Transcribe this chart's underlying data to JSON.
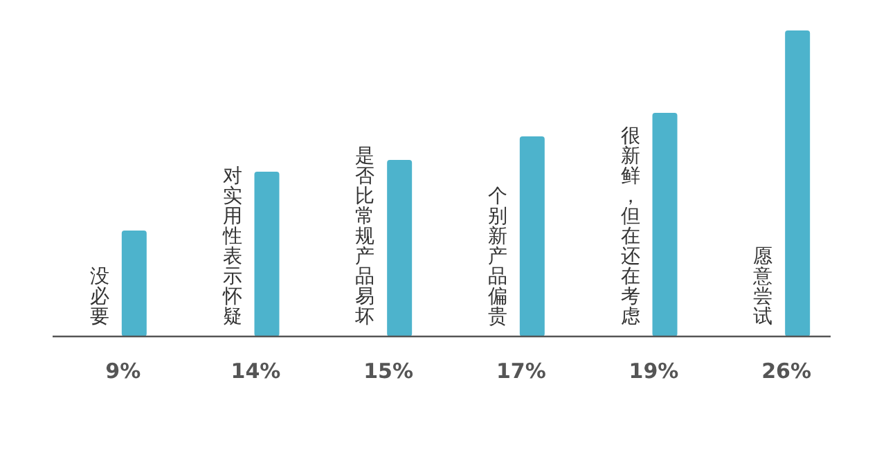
{
  "chart_data": {
    "type": "bar",
    "categories": [
      "没必要",
      "对实用性表示怀疑",
      "是否比常规产品易坏",
      "个别新产品偏贵",
      "很新鲜，但在还在考虑",
      "愿意尝试"
    ],
    "values": [
      9,
      14,
      15,
      17,
      19,
      26
    ],
    "value_labels": [
      "9%",
      "14%",
      "15%",
      "17%",
      "19%",
      "26%"
    ],
    "color": "#4db3cc"
  }
}
